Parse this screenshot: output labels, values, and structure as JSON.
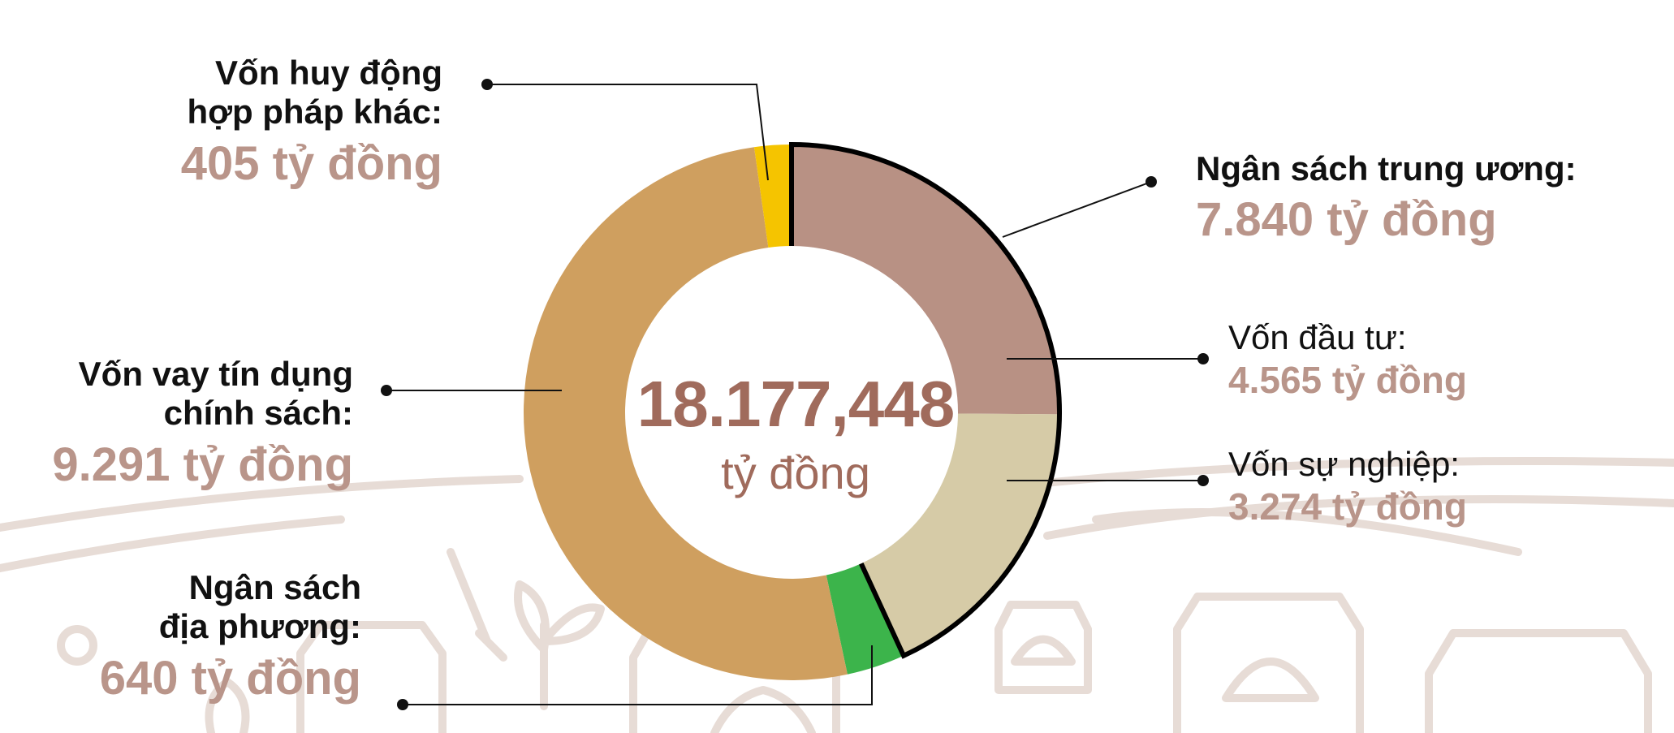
{
  "chart_data": {
    "type": "pie",
    "total": {
      "value": "18.177,448",
      "unit": "tỷ đồng"
    },
    "slices": [
      {
        "label": "Ngân sách trung ương:",
        "value_text": "7.840 tỷ đồng",
        "value": 7840,
        "color": "#000000",
        "sub": [
          {
            "label": "Vốn đầu tư:",
            "value_text": "4.565 tỷ đồng",
            "value": 4565,
            "color": "#b89184"
          },
          {
            "label": "Vốn sự nghiệp:",
            "value_text": "3.274 tỷ đồng",
            "value": 3274,
            "color": "#d6cba7"
          }
        ]
      },
      {
        "label": "Ngân sách địa phương:",
        "value_text": "640 tỷ đồng",
        "value": 640,
        "color": "#3cb44b"
      },
      {
        "label": "Vốn vay tín dụng chính sách:",
        "value_text": "9.291  tỷ đồng",
        "value": 9291,
        "color": "#cf9f5f"
      },
      {
        "label": "Vốn huy động hợp pháp khác:",
        "value_text": "405 tỷ đồng",
        "value": 405,
        "color": "#f5c400"
      }
    ]
  },
  "labels": {
    "huy_dong": {
      "line1": "Vốn huy động",
      "line2": "hợp pháp khác:",
      "value": "405 tỷ đồng"
    },
    "trung_uong": {
      "name": "Ngân sách trung ương:",
      "value": "7.840 tỷ đồng"
    },
    "dau_tu": {
      "name": "Vốn đầu tư:",
      "value": "4.565 tỷ đồng"
    },
    "su_nghiep": {
      "name": "Vốn sự nghiệp:",
      "value": "3.274 tỷ đồng"
    },
    "vay_tin_dung": {
      "line1": "Vốn vay tín dụng",
      "line2": "chính sách:",
      "value": "9.291  tỷ đồng"
    },
    "dia_phuong": {
      "line1": "Ngân sách",
      "line2": "địa phương:",
      "value": "640 tỷ đồng"
    }
  },
  "colors": {
    "accent_text": "#b9958a",
    "center_text": "#a06b5c",
    "background_art": "#e7dcd6"
  }
}
